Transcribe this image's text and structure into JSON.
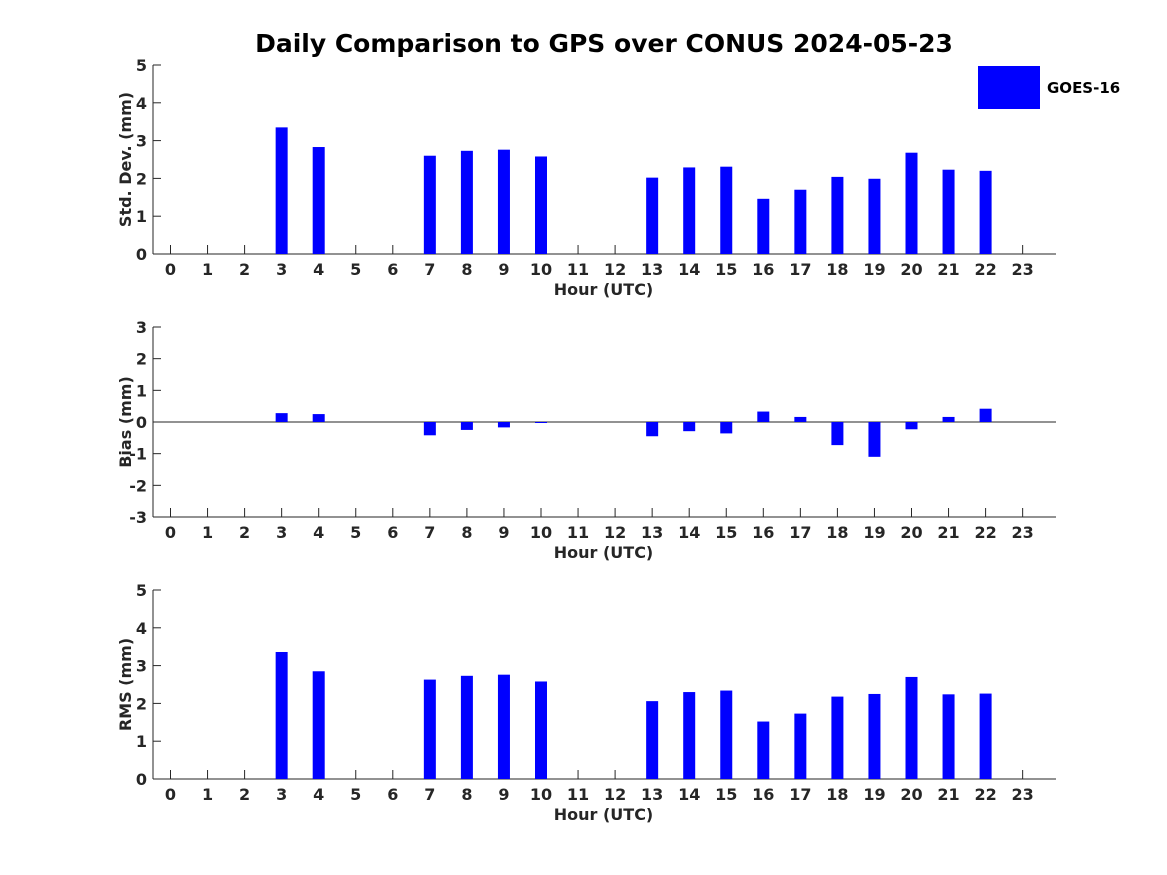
{
  "chart_data": {
    "type": "bar",
    "title": "Daily Comparison to GPS over CONUS 2024-05-23",
    "legend": {
      "entries": [
        "GOES-16"
      ],
      "placement": "top-right",
      "color": "#0000ff"
    },
    "categories": [
      "0",
      "1",
      "2",
      "3",
      "4",
      "5",
      "6",
      "7",
      "8",
      "9",
      "10",
      "11",
      "12",
      "13",
      "14",
      "15",
      "16",
      "17",
      "18",
      "19",
      "20",
      "21",
      "22",
      "23"
    ],
    "panels": [
      {
        "id": "std",
        "ylabel": "Std. Dev. (mm)",
        "xlabel": "Hour (UTC)",
        "ylim": [
          0,
          5
        ],
        "yticks": [
          "0",
          "1",
          "2",
          "3",
          "4",
          "5"
        ],
        "values": [
          null,
          null,
          null,
          3.35,
          2.83,
          null,
          null,
          2.6,
          2.73,
          2.76,
          2.58,
          null,
          null,
          2.02,
          2.29,
          2.31,
          1.46,
          1.7,
          2.04,
          1.99,
          2.68,
          2.23,
          2.2,
          null
        ]
      },
      {
        "id": "bias",
        "ylabel": "Bias (mm)",
        "xlabel": "Hour (UTC)",
        "ylim": [
          -3,
          3
        ],
        "yticks": [
          "-3",
          "-2",
          "-1",
          "0",
          "1",
          "2",
          "3"
        ],
        "values": [
          null,
          null,
          null,
          0.28,
          0.25,
          null,
          null,
          -0.42,
          -0.25,
          -0.17,
          -0.03,
          null,
          null,
          -0.45,
          -0.29,
          -0.36,
          0.33,
          0.16,
          -0.73,
          -1.1,
          -0.23,
          0.16,
          0.42,
          null
        ]
      },
      {
        "id": "rms",
        "ylabel": "RMS (mm)",
        "xlabel": "Hour (UTC)",
        "ylim": [
          0,
          5
        ],
        "yticks": [
          "0",
          "1",
          "2",
          "3",
          "4",
          "5"
        ],
        "values": [
          null,
          null,
          null,
          3.36,
          2.85,
          null,
          null,
          2.63,
          2.73,
          2.76,
          2.58,
          null,
          null,
          2.06,
          2.3,
          2.34,
          1.52,
          1.73,
          2.18,
          2.25,
          2.7,
          2.24,
          2.26,
          null
        ]
      }
    ]
  }
}
